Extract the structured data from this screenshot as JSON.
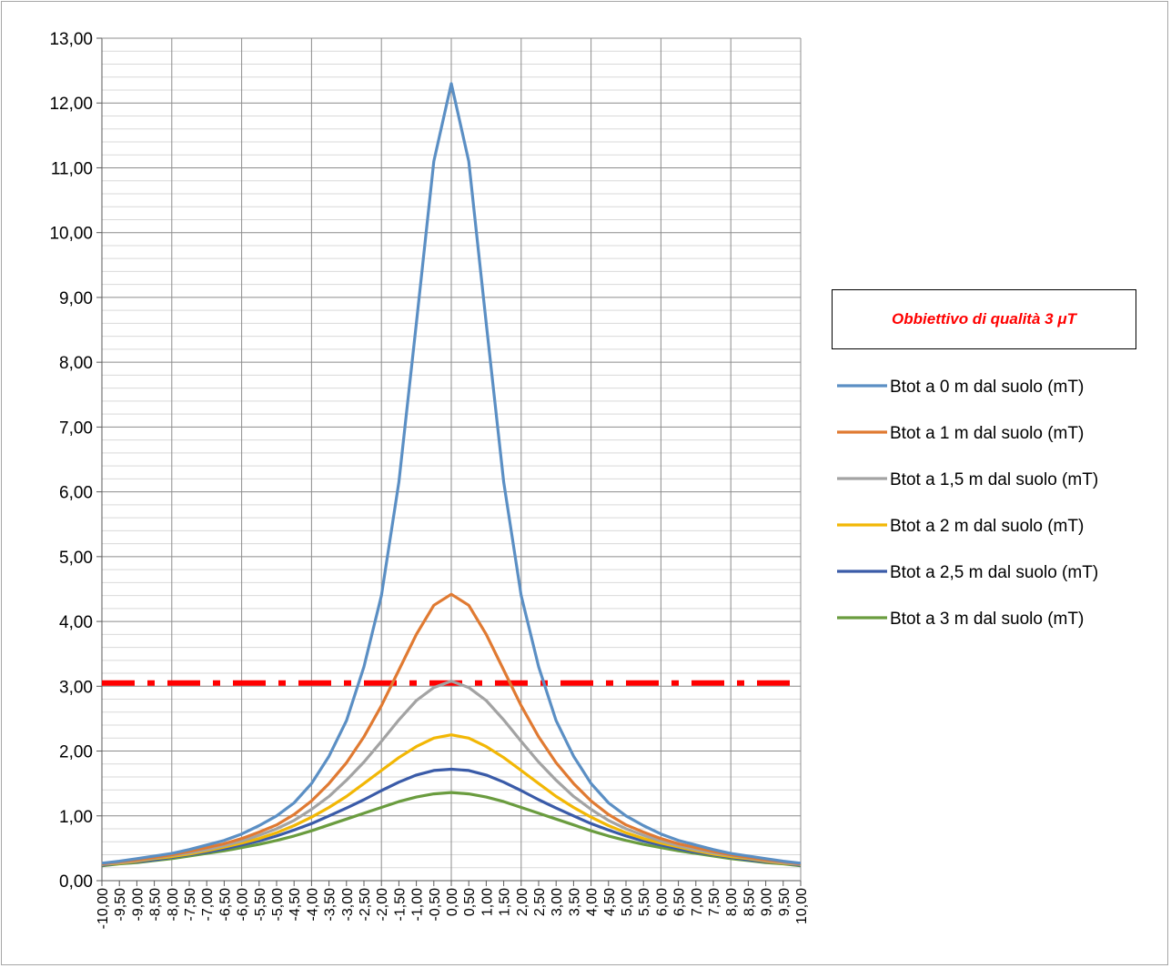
{
  "annotation": "Obbiettivo di qualità 3 μT",
  "chart_data": {
    "type": "line",
    "title": "",
    "xlabel": "",
    "ylabel": "",
    "ylim": [
      0,
      13
    ],
    "y_ticks": [
      "0,00",
      "1,00",
      "2,00",
      "3,00",
      "4,00",
      "5,00",
      "6,00",
      "7,00",
      "8,00",
      "9,00",
      "10,00",
      "11,00",
      "12,00",
      "13,00"
    ],
    "x_tick_labels": [
      "-10,00",
      "-9,50",
      "-9,00",
      "-8,50",
      "-8,00",
      "-7,50",
      "-7,00",
      "-6,50",
      "-6,00",
      "-5,50",
      "-5,00",
      "-4,50",
      "-4,00",
      "-3,50",
      "-3,00",
      "-2,50",
      "-2,00",
      "-1,50",
      "-1,00",
      "-0,50",
      "0,00",
      "0,50",
      "1,00",
      "1,50",
      "2,00",
      "2,50",
      "3,00",
      "3,50",
      "4,00",
      "4,50",
      "5,00",
      "5,50",
      "6,00",
      "6,50",
      "7,00",
      "7,50",
      "8,00",
      "8,50",
      "9,00",
      "9,50",
      "10,00"
    ],
    "x": [
      -10,
      -9.5,
      -9,
      -8.5,
      -8,
      -7.5,
      -7,
      -6.5,
      -6,
      -5.5,
      -5,
      -4.5,
      -4,
      -3.5,
      -3,
      -2.5,
      -2,
      -1.5,
      -1,
      -0.5,
      0,
      0.5,
      1,
      1.5,
      2,
      2.5,
      3,
      3.5,
      4,
      4.5,
      5,
      5.5,
      6,
      6.5,
      7,
      7.5,
      8,
      8.5,
      9,
      9.5,
      10
    ],
    "grid": true,
    "legend_position": "right",
    "threshold_line": {
      "y": 3.05,
      "color": "#ff0000",
      "style": "dash-dot"
    },
    "series": [
      {
        "name": "Btot a 0 m dal suolo (mT)",
        "color": "#5b8fc4",
        "values": [
          0.27,
          0.3,
          0.34,
          0.38,
          0.42,
          0.48,
          0.55,
          0.62,
          0.72,
          0.85,
          1.0,
          1.2,
          1.5,
          1.92,
          2.47,
          3.3,
          4.4,
          6.15,
          8.6,
          11.1,
          12.3,
          11.1,
          8.6,
          6.15,
          4.4,
          3.3,
          2.47,
          1.92,
          1.5,
          1.2,
          1.0,
          0.85,
          0.72,
          0.62,
          0.55,
          0.48,
          0.42,
          0.38,
          0.34,
          0.3,
          0.27
        ]
      },
      {
        "name": "Btot a 1 m dal suolo (mT)",
        "color": "#e07a32",
        "values": [
          0.26,
          0.29,
          0.32,
          0.36,
          0.4,
          0.45,
          0.51,
          0.57,
          0.65,
          0.75,
          0.86,
          1.02,
          1.23,
          1.5,
          1.82,
          2.22,
          2.7,
          3.25,
          3.8,
          4.25,
          4.42,
          4.25,
          3.8,
          3.25,
          2.7,
          2.22,
          1.82,
          1.5,
          1.23,
          1.02,
          0.86,
          0.75,
          0.65,
          0.57,
          0.51,
          0.45,
          0.4,
          0.36,
          0.32,
          0.29,
          0.26
        ]
      },
      {
        "name": "Btot a 1,5 m dal suolo (mT)",
        "color": "#a3a3a3",
        "values": [
          0.25,
          0.28,
          0.31,
          0.35,
          0.39,
          0.43,
          0.48,
          0.54,
          0.61,
          0.7,
          0.8,
          0.93,
          1.1,
          1.3,
          1.55,
          1.83,
          2.15,
          2.48,
          2.78,
          2.98,
          3.08,
          2.98,
          2.78,
          2.48,
          2.15,
          1.83,
          1.55,
          1.3,
          1.1,
          0.93,
          0.8,
          0.7,
          0.61,
          0.54,
          0.48,
          0.43,
          0.39,
          0.35,
          0.31,
          0.28,
          0.25
        ]
      },
      {
        "name": "Btot a 2 m dal suolo (mT)",
        "color": "#f2b705",
        "values": [
          0.25,
          0.27,
          0.3,
          0.34,
          0.37,
          0.41,
          0.46,
          0.52,
          0.58,
          0.65,
          0.74,
          0.85,
          0.98,
          1.13,
          1.3,
          1.5,
          1.7,
          1.9,
          2.07,
          2.2,
          2.25,
          2.2,
          2.07,
          1.9,
          1.7,
          1.5,
          1.3,
          1.13,
          0.98,
          0.85,
          0.74,
          0.65,
          0.58,
          0.52,
          0.46,
          0.41,
          0.37,
          0.34,
          0.3,
          0.27,
          0.25
        ]
      },
      {
        "name": "Btot a 2,5 m dal suolo (mT)",
        "color": "#3a5ba8",
        "values": [
          0.24,
          0.27,
          0.29,
          0.32,
          0.36,
          0.4,
          0.44,
          0.49,
          0.55,
          0.61,
          0.69,
          0.78,
          0.88,
          1.0,
          1.12,
          1.25,
          1.39,
          1.52,
          1.63,
          1.7,
          1.72,
          1.7,
          1.63,
          1.52,
          1.39,
          1.25,
          1.12,
          1.0,
          0.88,
          0.78,
          0.69,
          0.61,
          0.55,
          0.49,
          0.44,
          0.4,
          0.36,
          0.32,
          0.29,
          0.27,
          0.24
        ]
      },
      {
        "name": "Btot a 3 m dal suolo (mT)",
        "color": "#6a9c3f",
        "values": [
          0.23,
          0.26,
          0.28,
          0.31,
          0.34,
          0.38,
          0.42,
          0.46,
          0.51,
          0.56,
          0.62,
          0.69,
          0.77,
          0.86,
          0.95,
          1.04,
          1.13,
          1.22,
          1.29,
          1.34,
          1.36,
          1.34,
          1.29,
          1.22,
          1.13,
          1.04,
          0.95,
          0.86,
          0.77,
          0.69,
          0.62,
          0.56,
          0.51,
          0.46,
          0.42,
          0.38,
          0.34,
          0.31,
          0.28,
          0.26,
          0.23
        ]
      }
    ]
  }
}
